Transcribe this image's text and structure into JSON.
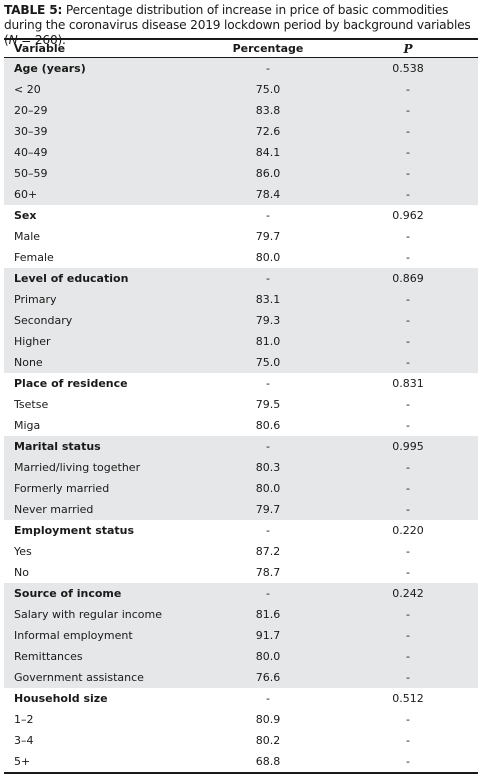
{
  "caption": {
    "label": "TABLE 5:",
    "text_before": " Percentage distribution of increase in price of basic commodities during the coronavirus disease 2019 lockdown period by background variables (",
    "italic": "N",
    "text_after": " = 260)."
  },
  "header": [
    "Variable",
    "Percentage",
    "P"
  ],
  "groups": [
    {
      "label": "Age (years)",
      "percentage": "-",
      "p": "0.538",
      "rows": [
        [
          "< 20",
          "75.0",
          "-"
        ],
        [
          "20–29",
          "83.8",
          "-"
        ],
        [
          "30–39",
          "72.6",
          "-"
        ],
        [
          "40–49",
          "84.1",
          "-"
        ],
        [
          "50–59",
          "86.0",
          "-"
        ],
        [
          "60+",
          "78.4",
          "-"
        ]
      ]
    },
    {
      "label": "Sex",
      "percentage": "-",
      "p": "0.962",
      "rows": [
        [
          "Male",
          "79.7",
          "-"
        ],
        [
          "Female",
          "80.0",
          "-"
        ]
      ]
    },
    {
      "label": "Level of education",
      "percentage": "-",
      "p": "0.869",
      "rows": [
        [
          "Primary",
          "83.1",
          "-"
        ],
        [
          "Secondary",
          "79.3",
          "-"
        ],
        [
          "Higher",
          "81.0",
          "-"
        ],
        [
          "None",
          "75.0",
          "-"
        ]
      ]
    },
    {
      "label": "Place of residence",
      "percentage": "-",
      "p": "0.831",
      "rows": [
        [
          "Tsetse",
          "79.5",
          "-"
        ],
        [
          "Miga",
          "80.6",
          "-"
        ]
      ]
    },
    {
      "label": "Marital status",
      "percentage": "-",
      "p": "0.995",
      "rows": [
        [
          "Married/living together",
          "80.3",
          "-"
        ],
        [
          "Formerly married",
          "80.0",
          "-"
        ],
        [
          "Never married",
          "79.7",
          "-"
        ]
      ]
    },
    {
      "label": "Employment status",
      "percentage": "-",
      "p": "0.220",
      "rows": [
        [
          "Yes",
          "87.2",
          "-"
        ],
        [
          "No",
          "78.7",
          "-"
        ]
      ]
    },
    {
      "label": "Source of income",
      "percentage": "-",
      "p": "0.242",
      "rows": [
        [
          "Salary with regular income",
          "81.6",
          "-"
        ],
        [
          "Informal employment",
          "91.7",
          "-"
        ],
        [
          "Remittances",
          "80.0",
          "-"
        ],
        [
          "Government assistance",
          "76.6",
          "-"
        ]
      ]
    },
    {
      "label": "Household size",
      "percentage": "-",
      "p": "0.512",
      "rows": [
        [
          "1–2",
          "80.9",
          "-"
        ],
        [
          "3–4",
          "80.2",
          "-"
        ],
        [
          "5+",
          "68.8",
          "-"
        ]
      ]
    }
  ]
}
